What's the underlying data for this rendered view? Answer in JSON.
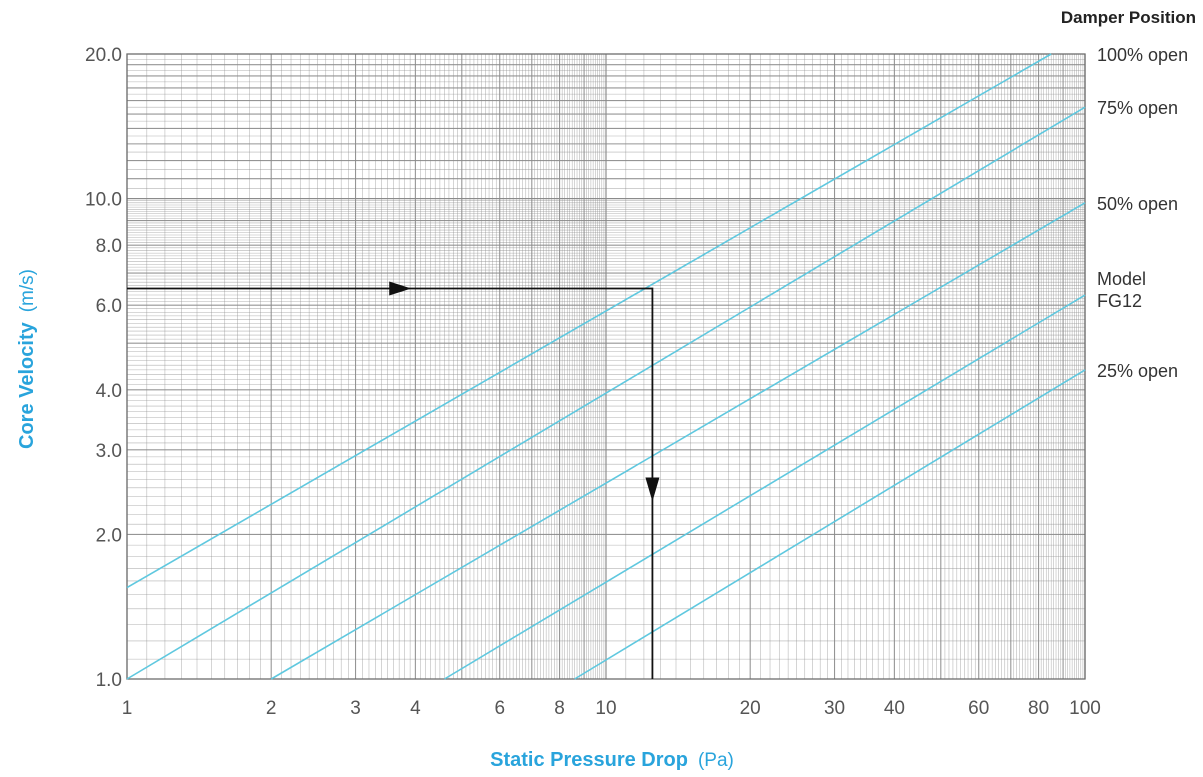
{
  "chart_data": {
    "type": "line",
    "x_scale": "log",
    "y_scale": "log",
    "xlim": [
      1,
      100
    ],
    "ylim": [
      1.0,
      20.0
    ],
    "grid": true,
    "x_ticks": [
      "1",
      "2",
      "3",
      "4",
      "6",
      "8",
      "10",
      "20",
      "30",
      "40",
      "60",
      "80",
      "100"
    ],
    "x_tick_values": [
      1,
      2,
      3,
      4,
      6,
      8,
      10,
      20,
      30,
      40,
      60,
      80,
      100
    ],
    "y_ticks": [
      "1.0",
      "2.0",
      "3.0",
      "4.0",
      "6.0",
      "8.0",
      "10.0",
      "20.0"
    ],
    "y_tick_values": [
      1,
      2,
      3,
      4,
      6,
      8,
      10,
      20
    ],
    "xlabel": {
      "name": "Static Pressure Drop",
      "unit": "(Pa)"
    },
    "ylabel": {
      "name": "Core Velocity",
      "unit": "(m/s)"
    },
    "legend_title": "Damper Position",
    "legend_placement": "right",
    "series": [
      {
        "name": "100% open",
        "points": [
          [
            1,
            1.55
          ],
          [
            85,
            20.0
          ]
        ]
      },
      {
        "name": "75% open",
        "points": [
          [
            1,
            1.0
          ],
          [
            100,
            15.5
          ]
        ]
      },
      {
        "name": "50% open",
        "points": [
          [
            2.0,
            1.0
          ],
          [
            100,
            9.8
          ]
        ]
      },
      {
        "name": "Model FG12",
        "points": [
          [
            4.6,
            1.0
          ],
          [
            100,
            6.3
          ]
        ]
      },
      {
        "name": "25% open",
        "points": [
          [
            8.6,
            1.0
          ],
          [
            100,
            4.4
          ]
        ]
      }
    ],
    "series_label_lines": [
      [
        "100% open"
      ],
      [
        "75% open"
      ],
      [
        "50% open"
      ],
      [
        "Model",
        "FG12"
      ],
      [
        "25% open"
      ]
    ],
    "example_path": {
      "velocity": 6.5,
      "pressure_drop": 12.5
    }
  },
  "colors": {
    "grid": "#8a8a8a",
    "series": "#5fc8df",
    "axis_title": "#29a4dc",
    "tick": "#555555",
    "example_path": "#111111"
  }
}
